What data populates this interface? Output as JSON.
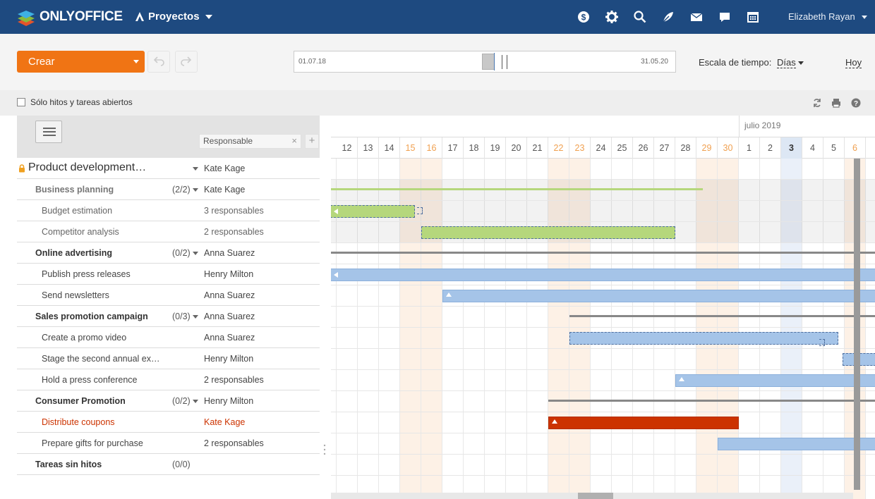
{
  "app": {
    "brand": "ONLYOFFICE",
    "module": "Proyectos",
    "user": "Elizabeth Rayan",
    "icons": [
      "dollar-icon",
      "settings-icon",
      "search-icon",
      "feed-icon",
      "mail-icon",
      "chat-icon",
      "calendar-icon"
    ]
  },
  "toolbar": {
    "create_label": "Crear",
    "range_from": "01.07.18",
    "range_to": "31.05.20",
    "scale_label": "Escala de tiempo:",
    "scale_value": "Días",
    "today_label": "Hoy"
  },
  "filter": {
    "open_only_label": "Sólo hitos y tareas abiertos",
    "icons": [
      "refresh-icon",
      "print-icon",
      "help-icon"
    ]
  },
  "columns": {
    "responsible_label": "Responsable",
    "close_glyph": "×",
    "add_glyph": "+"
  },
  "rows": [
    {
      "name": "Product development…",
      "count": "",
      "resp": "Kate Kage",
      "level": 0
    },
    {
      "name": "Business planning",
      "count": "(2/2)",
      "resp": "Kate Kage",
      "level": 1,
      "muted": true
    },
    {
      "name": "Budget estimation",
      "count": "",
      "resp": "3 responsables",
      "level": 2,
      "muted": true
    },
    {
      "name": "Competitor analysis",
      "count": "",
      "resp": "2 responsables",
      "level": 2,
      "muted": true
    },
    {
      "name": "Online advertising",
      "count": "(0/2)",
      "resp": "Anna Suarez",
      "level": 1
    },
    {
      "name": "Publish press releases",
      "count": "",
      "resp": "Henry Milton",
      "level": 2
    },
    {
      "name": "Send newsletters",
      "count": "",
      "resp": "Anna Suarez",
      "level": 2
    },
    {
      "name": "Sales promotion campaign",
      "count": "(0/3)",
      "resp": "Anna Suarez",
      "level": 1
    },
    {
      "name": "Create a promo video",
      "count": "",
      "resp": "Anna Suarez",
      "level": 2
    },
    {
      "name": "Stage the second annual ex…",
      "count": "",
      "resp": "Henry Milton",
      "level": 2
    },
    {
      "name": "Hold a press conference",
      "count": "",
      "resp": "2 responsables",
      "level": 2
    },
    {
      "name": "Consumer Promotion",
      "count": "(0/2)",
      "resp": "Henry Milton",
      "level": 1
    },
    {
      "name": "Distribute coupons",
      "count": "",
      "resp": "Kate Kage",
      "level": 2,
      "red": true
    },
    {
      "name": "Prepare gifts for purchase",
      "count": "",
      "resp": "2 responsables",
      "level": 2
    },
    {
      "name": "Tareas sin hitos",
      "count": "(0/0)",
      "resp": "",
      "level": 1,
      "nodrop": true
    }
  ],
  "gantt": {
    "month": "julio 2019",
    "days": [
      "12",
      "13",
      "14",
      "15",
      "16",
      "17",
      "18",
      "19",
      "20",
      "21",
      "22",
      "23",
      "24",
      "25",
      "26",
      "27",
      "28",
      "29",
      "30",
      "1",
      "2",
      "3",
      "4",
      "5",
      "6"
    ],
    "weekend_days": [
      "15",
      "16",
      "22",
      "23",
      "29",
      "30",
      "6"
    ],
    "today": "3",
    "colors": {
      "green": "#b5d77c",
      "blue": "#a5c4e8",
      "red": "#cc3300",
      "milestone_line": "#888888"
    }
  }
}
